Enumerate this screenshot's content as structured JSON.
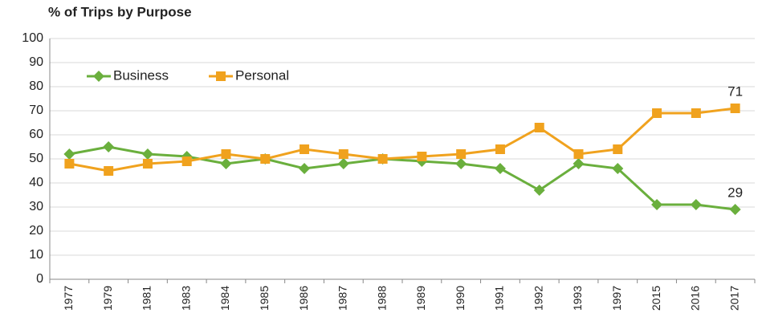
{
  "chart_data": {
    "type": "line",
    "title": "% of Trips by Purpose",
    "categories": [
      "1977",
      "1979",
      "1981",
      "1983",
      "1984",
      "1985",
      "1986",
      "1987",
      "1988",
      "1989",
      "1990",
      "1991",
      "1992",
      "1993",
      "1997",
      "2015",
      "2016",
      "2017"
    ],
    "series": [
      {
        "name": "Business",
        "color": "#6aaf3d",
        "marker": "diamond",
        "values": [
          52,
          55,
          52,
          51,
          48,
          50,
          46,
          48,
          50,
          49,
          48,
          46,
          37,
          48,
          46,
          31,
          31,
          29
        ]
      },
      {
        "name": "Personal",
        "color": "#f0a21e",
        "marker": "square",
        "values": [
          48,
          45,
          48,
          49,
          52,
          50,
          54,
          52,
          50,
          51,
          52,
          54,
          63,
          52,
          54,
          69,
          69,
          71
        ]
      }
    ],
    "ylim": [
      0,
      100
    ],
    "yticks": [
      0,
      10,
      20,
      30,
      40,
      50,
      60,
      70,
      80,
      90,
      100
    ],
    "grid": true,
    "legend": "upper left"
  }
}
